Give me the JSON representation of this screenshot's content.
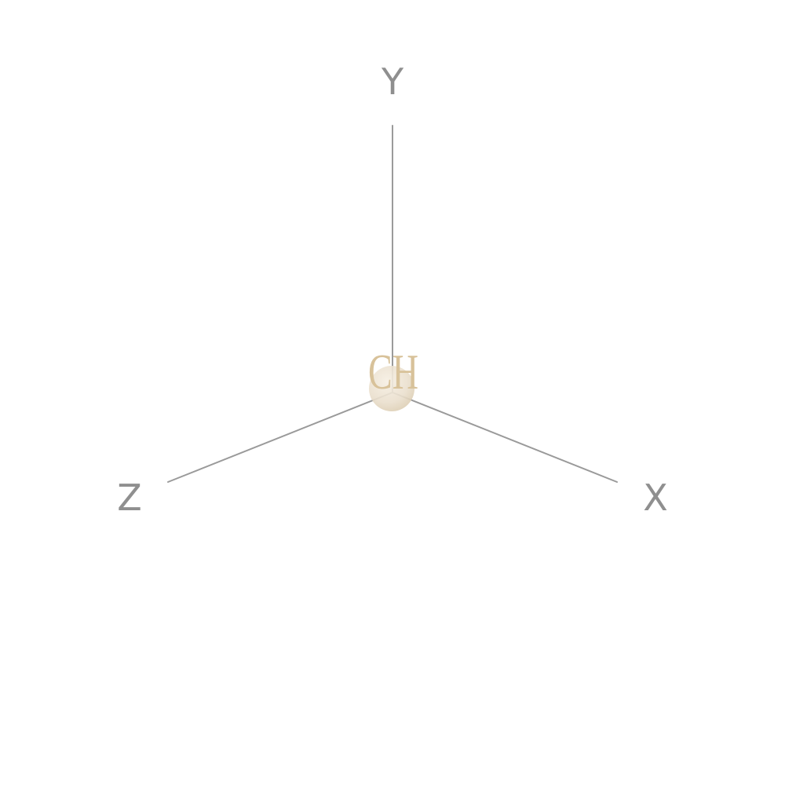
{
  "axes": {
    "x_label": "X",
    "y_label": "Y",
    "z_label": "Z"
  },
  "atom": {
    "label": "CH",
    "label_color": "#d8c29a",
    "sphere_color": "#eadfcd"
  },
  "colors": {
    "axis": "#9a9a9a",
    "axis_label": "#8f8f8f",
    "background": "#ffffff"
  }
}
